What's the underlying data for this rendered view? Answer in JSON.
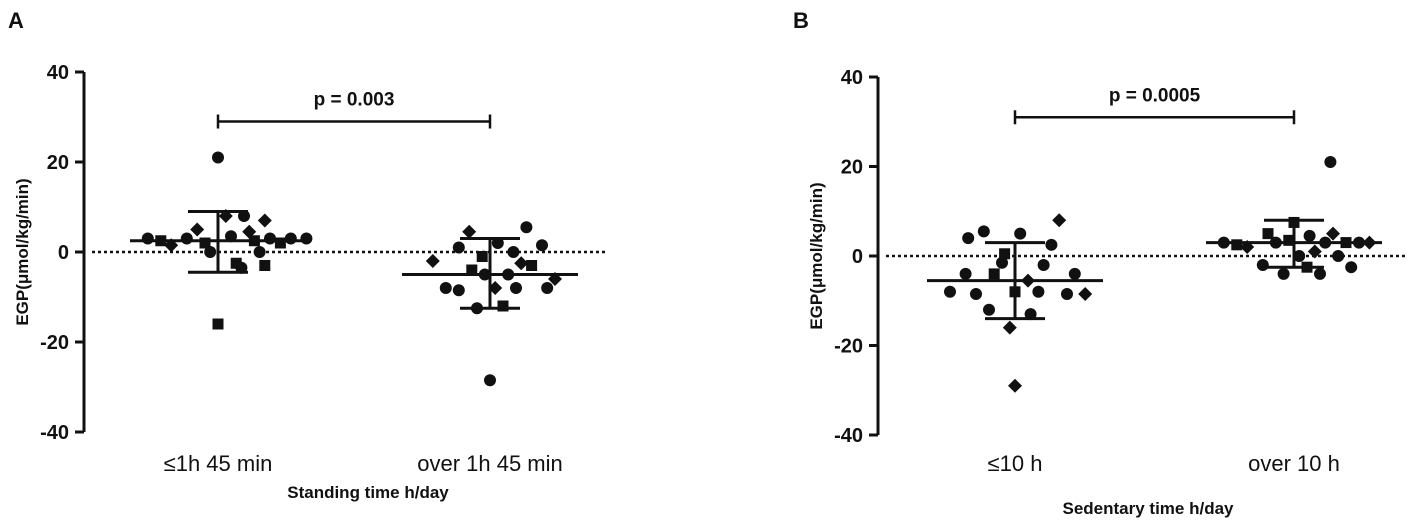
{
  "chart_data": [
    {
      "type": "scatter",
      "panel": "A",
      "ylabel": "EGP(μmol/kg/min)",
      "xlabel": "Standing time h/day",
      "ylim": [
        -40,
        40
      ],
      "yticks": [
        -40,
        -20,
        0,
        20,
        40
      ],
      "reference_line_y": 0,
      "categories": [
        "≤1h 45 min",
        "over 1h 45 min"
      ],
      "groups": [
        {
          "category": "≤1h 45 min",
          "mean": 2.5,
          "sd_low": -4.5,
          "sd_high": 9,
          "points": [
            {
              "dx": -0.27,
              "y": 3,
              "m": "circle"
            },
            {
              "dx": -0.22,
              "y": 2.5,
              "m": "square"
            },
            {
              "dx": -0.18,
              "y": 1.5,
              "m": "diamond"
            },
            {
              "dx": -0.12,
              "y": 3,
              "m": "circle"
            },
            {
              "dx": -0.08,
              "y": 5,
              "m": "diamond"
            },
            {
              "dx": -0.05,
              "y": 2,
              "m": "square"
            },
            {
              "dx": -0.03,
              "y": 0,
              "m": "circle"
            },
            {
              "dx": 0.0,
              "y": 21,
              "m": "circle"
            },
            {
              "dx": 0.0,
              "y": -16,
              "m": "square"
            },
            {
              "dx": 0.03,
              "y": 8,
              "m": "diamond"
            },
            {
              "dx": 0.05,
              "y": 3.5,
              "m": "circle"
            },
            {
              "dx": 0.07,
              "y": -2.5,
              "m": "square"
            },
            {
              "dx": 0.09,
              "y": -3.5,
              "m": "circle"
            },
            {
              "dx": 0.1,
              "y": 8,
              "m": "circle"
            },
            {
              "dx": 0.12,
              "y": 4.5,
              "m": "diamond"
            },
            {
              "dx": 0.14,
              "y": 2.5,
              "m": "square"
            },
            {
              "dx": 0.16,
              "y": 0,
              "m": "circle"
            },
            {
              "dx": 0.18,
              "y": -3,
              "m": "square"
            },
            {
              "dx": 0.18,
              "y": 7,
              "m": "diamond"
            },
            {
              "dx": 0.2,
              "y": 3,
              "m": "circle"
            },
            {
              "dx": 0.24,
              "y": 2,
              "m": "square"
            },
            {
              "dx": 0.28,
              "y": 3,
              "m": "circle"
            },
            {
              "dx": 0.34,
              "y": 3,
              "m": "circle"
            }
          ]
        },
        {
          "category": "over 1h 45 min",
          "mean": -5,
          "sd_low": -12.5,
          "sd_high": 3,
          "points": [
            {
              "dx": -0.22,
              "y": -2,
              "m": "diamond"
            },
            {
              "dx": -0.17,
              "y": -8,
              "m": "circle"
            },
            {
              "dx": -0.12,
              "y": -8.5,
              "m": "circle"
            },
            {
              "dx": -0.12,
              "y": 1,
              "m": "circle"
            },
            {
              "dx": -0.08,
              "y": 4.5,
              "m": "diamond"
            },
            {
              "dx": -0.07,
              "y": -4,
              "m": "square"
            },
            {
              "dx": -0.05,
              "y": -12.5,
              "m": "circle"
            },
            {
              "dx": -0.03,
              "y": -1,
              "m": "square"
            },
            {
              "dx": -0.02,
              "y": -5,
              "m": "circle"
            },
            {
              "dx": 0.0,
              "y": -28.5,
              "m": "circle"
            },
            {
              "dx": 0.02,
              "y": -8,
              "m": "diamond"
            },
            {
              "dx": 0.03,
              "y": 2,
              "m": "circle"
            },
            {
              "dx": 0.05,
              "y": -12,
              "m": "square"
            },
            {
              "dx": 0.07,
              "y": -5,
              "m": "circle"
            },
            {
              "dx": 0.09,
              "y": 0,
              "m": "circle"
            },
            {
              "dx": 0.1,
              "y": -8,
              "m": "circle"
            },
            {
              "dx": 0.12,
              "y": -2.5,
              "m": "diamond"
            },
            {
              "dx": 0.14,
              "y": 5.5,
              "m": "circle"
            },
            {
              "dx": 0.16,
              "y": -3,
              "m": "square"
            },
            {
              "dx": 0.2,
              "y": 1.5,
              "m": "circle"
            },
            {
              "dx": 0.22,
              "y": -8,
              "m": "circle"
            },
            {
              "dx": 0.25,
              "y": -6,
              "m": "diamond"
            }
          ]
        }
      ],
      "comparison": {
        "from": 0,
        "to": 1,
        "y": 29,
        "label": "p = 0.003"
      }
    },
    {
      "type": "scatter",
      "panel": "B",
      "ylabel": "EGP(μmol/kg/min)",
      "xlabel": "Sedentary time h/day",
      "ylim": [
        -40,
        40
      ],
      "yticks": [
        -40,
        -20,
        0,
        20,
        40
      ],
      "reference_line_y": 0,
      "categories": [
        "≤10 h",
        "over 10 h"
      ],
      "groups": [
        {
          "category": "≤10 h",
          "mean": -5.5,
          "sd_low": -14,
          "sd_high": 3,
          "points": [
            {
              "dx": -0.25,
              "y": -8,
              "m": "circle"
            },
            {
              "dx": -0.19,
              "y": -4,
              "m": "circle"
            },
            {
              "dx": -0.18,
              "y": 4,
              "m": "circle"
            },
            {
              "dx": -0.15,
              "y": -8.5,
              "m": "circle"
            },
            {
              "dx": -0.12,
              "y": 5.5,
              "m": "circle"
            },
            {
              "dx": -0.1,
              "y": -12,
              "m": "circle"
            },
            {
              "dx": -0.08,
              "y": -4,
              "m": "square"
            },
            {
              "dx": -0.05,
              "y": -1.5,
              "m": "circle"
            },
            {
              "dx": -0.04,
              "y": 0.5,
              "m": "square"
            },
            {
              "dx": -0.02,
              "y": -16,
              "m": "diamond"
            },
            {
              "dx": 0.0,
              "y": -29,
              "m": "diamond"
            },
            {
              "dx": 0.0,
              "y": -8,
              "m": "square"
            },
            {
              "dx": 0.02,
              "y": 5,
              "m": "circle"
            },
            {
              "dx": 0.05,
              "y": -5.5,
              "m": "diamond"
            },
            {
              "dx": 0.06,
              "y": -13,
              "m": "circle"
            },
            {
              "dx": 0.09,
              "y": -8,
              "m": "circle"
            },
            {
              "dx": 0.11,
              "y": -2,
              "m": "circle"
            },
            {
              "dx": 0.14,
              "y": 2.5,
              "m": "circle"
            },
            {
              "dx": 0.17,
              "y": 8,
              "m": "diamond"
            },
            {
              "dx": 0.2,
              "y": -8.5,
              "m": "circle"
            },
            {
              "dx": 0.23,
              "y": -4,
              "m": "circle"
            },
            {
              "dx": 0.27,
              "y": -8.5,
              "m": "diamond"
            }
          ]
        },
        {
          "category": "over 10 h",
          "mean": 3,
          "sd_low": -2.5,
          "sd_high": 8,
          "points": [
            {
              "dx": -0.27,
              "y": 3,
              "m": "circle"
            },
            {
              "dx": -0.22,
              "y": 2.5,
              "m": "square"
            },
            {
              "dx": -0.18,
              "y": 2,
              "m": "diamond"
            },
            {
              "dx": -0.12,
              "y": -2,
              "m": "circle"
            },
            {
              "dx": -0.1,
              "y": 5,
              "m": "square"
            },
            {
              "dx": -0.07,
              "y": 3,
              "m": "circle"
            },
            {
              "dx": -0.04,
              "y": -4,
              "m": "circle"
            },
            {
              "dx": -0.02,
              "y": 3.5,
              "m": "square"
            },
            {
              "dx": 0.0,
              "y": 7.5,
              "m": "square"
            },
            {
              "dx": 0.02,
              "y": 0,
              "m": "circle"
            },
            {
              "dx": 0.05,
              "y": -2.5,
              "m": "square"
            },
            {
              "dx": 0.06,
              "y": 4.5,
              "m": "circle"
            },
            {
              "dx": 0.08,
              "y": 1,
              "m": "diamond"
            },
            {
              "dx": 0.1,
              "y": -4,
              "m": "circle"
            },
            {
              "dx": 0.12,
              "y": 3,
              "m": "circle"
            },
            {
              "dx": 0.14,
              "y": 21,
              "m": "circle"
            },
            {
              "dx": 0.15,
              "y": 5,
              "m": "diamond"
            },
            {
              "dx": 0.17,
              "y": 0,
              "m": "circle"
            },
            {
              "dx": 0.2,
              "y": 3,
              "m": "square"
            },
            {
              "dx": 0.22,
              "y": -2.5,
              "m": "circle"
            },
            {
              "dx": 0.25,
              "y": 3,
              "m": "circle"
            },
            {
              "dx": 0.29,
              "y": 3,
              "m": "diamond"
            }
          ]
        }
      ],
      "comparison": {
        "from": 0,
        "to": 1,
        "y": 31,
        "label": "p = 0.0005"
      }
    }
  ]
}
